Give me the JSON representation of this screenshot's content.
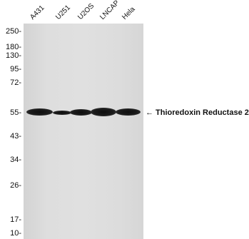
{
  "lanes": [
    "A431",
    "U251",
    "U2OS",
    "LNCAP",
    "Hela"
  ],
  "markers": [
    "250-",
    "180-",
    "130-",
    "95-",
    "72-",
    "55-",
    "43-",
    "34-",
    "26-",
    "17-",
    "10-"
  ],
  "band": {
    "arrow_label": "← Thioredoxin Reductase 2"
  }
}
